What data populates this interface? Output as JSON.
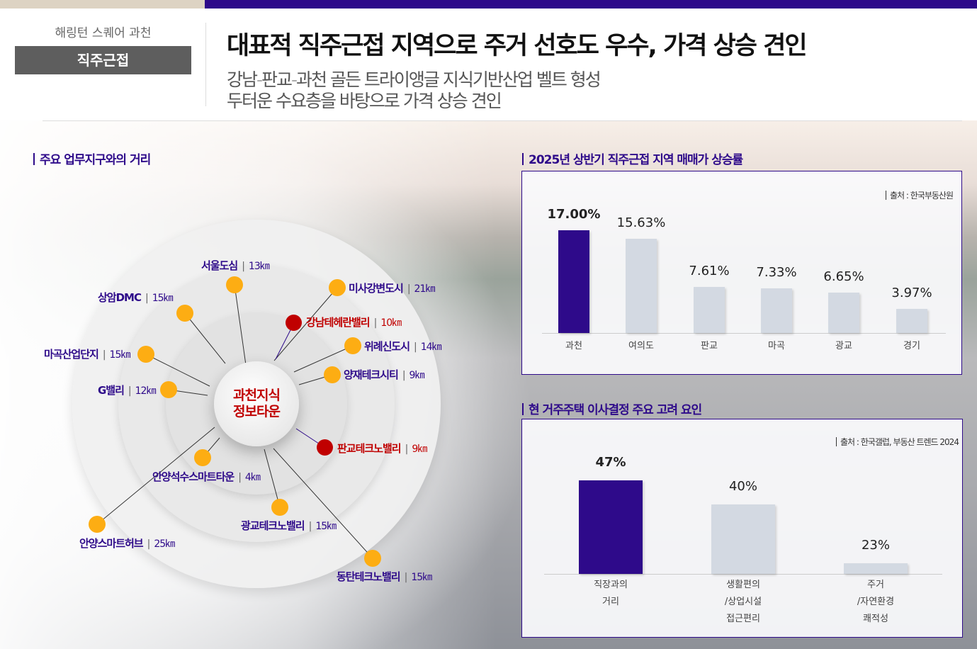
{
  "header": {
    "brand": "해링턴 스퀘어 과천",
    "tag": "직주근접",
    "title": "대표적 직주근접 지역으로 주거 선호도 우수, 가격 상승 견인",
    "subtitle_lines": [
      "강남-판교-과천 골든 트라이앵글 지식기반산업 벨트 형성",
      "두터운 수요층을 바탕으로 가격 상승 견인"
    ]
  },
  "distance": {
    "section_title": "주요 업무지구와의 거리",
    "center": [
      "과천지식",
      "정보타운"
    ],
    "places": [
      {
        "name": "서울도심",
        "km": "13㎞",
        "red": false
      },
      {
        "name": "상암DMC",
        "km": "15㎞",
        "red": false
      },
      {
        "name": "미사강변도시",
        "km": "21㎞",
        "red": false
      },
      {
        "name": "강남테헤란밸리",
        "km": "10㎞",
        "red": true
      },
      {
        "name": "위례신도시",
        "km": "14㎞",
        "red": false
      },
      {
        "name": "양재테크시티",
        "km": "9㎞",
        "red": false
      },
      {
        "name": "마곡산업단지",
        "km": "15㎞",
        "red": false
      },
      {
        "name": "G밸리",
        "km": "12㎞",
        "red": false
      },
      {
        "name": "판교테크노밸리",
        "km": "9㎞",
        "red": true
      },
      {
        "name": "안양석수스마트타운",
        "km": "4㎞",
        "red": false
      },
      {
        "name": "광교테크노밸리",
        "km": "15㎞",
        "red": false
      },
      {
        "name": "안양스마트허브",
        "km": "25㎞",
        "red": false
      },
      {
        "name": "동탄테크노밸리",
        "km": "15㎞",
        "red": false
      }
    ]
  },
  "chart_data": [
    {
      "type": "bar",
      "title": "2025년 상반기 직주근접 지역 매매가 상승률",
      "source": "출처 : 한국부동산원",
      "categories": [
        "과천",
        "여의도",
        "판교",
        "마곡",
        "광교",
        "경기"
      ],
      "values": [
        17.0,
        15.63,
        7.61,
        7.33,
        6.65,
        3.97
      ],
      "labels": [
        "17.00%",
        "15.63%",
        "7.61%",
        "7.33%",
        "6.65%",
        "3.97%"
      ],
      "ylim": [
        0,
        17
      ],
      "highlight": 0,
      "colors": {
        "highlight": "#2e0a8a",
        "normal": "#d3d9e2"
      }
    },
    {
      "type": "bar",
      "title": "현 거주주택 이사결정 주요 고려 요인",
      "source": "출처 : 한국갤럽, 부동산 트렌드 2024",
      "categories": [
        "직장과의\n거리",
        "생활편의\n/상업시설\n접근편리",
        "주거\n/자연환경\n쾌적성"
      ],
      "values": [
        47,
        40,
        23
      ],
      "labels": [
        "47%",
        "40%",
        "23%"
      ],
      "ylim": [
        20,
        47
      ],
      "highlight": 0,
      "colors": {
        "highlight": "#2e0a8a",
        "normal": "#d3d9e2"
      }
    }
  ]
}
